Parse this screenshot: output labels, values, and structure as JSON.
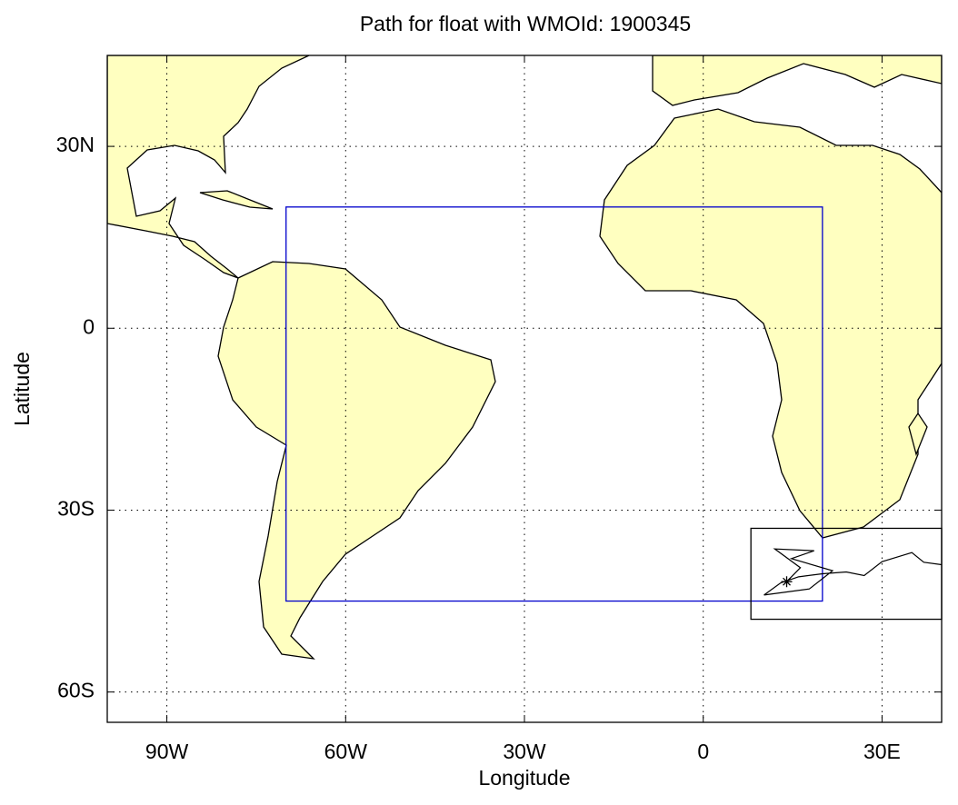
{
  "map": {
    "title": "Path for float with WMOId: 1900345",
    "xlabel": "Longitude",
    "ylabel": "Latitude",
    "xlim": [
      -100,
      40
    ],
    "ylim": [
      -65,
      45
    ],
    "xticks": [
      {
        "value": -90,
        "label": "90W"
      },
      {
        "value": -60,
        "label": "60W"
      },
      {
        "value": -30,
        "label": "30W"
      },
      0,
      {
        "value": 30,
        "label": "30E"
      }
    ],
    "yticks": [
      {
        "value": 30,
        "label": "30N"
      },
      0,
      {
        "value": -30,
        "label": "30S"
      },
      {
        "value": -60,
        "label": "60S"
      }
    ],
    "grid": true,
    "land_color": "#ffffc0",
    "boxes": [
      {
        "color": "#0000cc",
        "lon_min": -70,
        "lon_max": 20,
        "lat_min": -45,
        "lat_max": 20
      },
      {
        "color": "#000000",
        "lon_min": 8,
        "lon_max": 40,
        "lat_min": -48,
        "lat_max": -33
      }
    ],
    "float_path": {
      "color": "#000000",
      "lon": [
        14,
        16.3,
        12,
        18.6,
        14.8,
        21.7,
        17.8,
        10.2,
        13,
        16,
        20,
        24,
        27,
        30,
        33,
        35,
        37,
        40
      ],
      "lat": [
        -41.8,
        -39.5,
        -36.4,
        -36.7,
        -38,
        -40,
        -43,
        -44,
        -42,
        -41,
        -40.5,
        -40.2,
        -40.8,
        -38.5,
        -37.6,
        -37,
        -38.6,
        -39
      ]
    }
  }
}
